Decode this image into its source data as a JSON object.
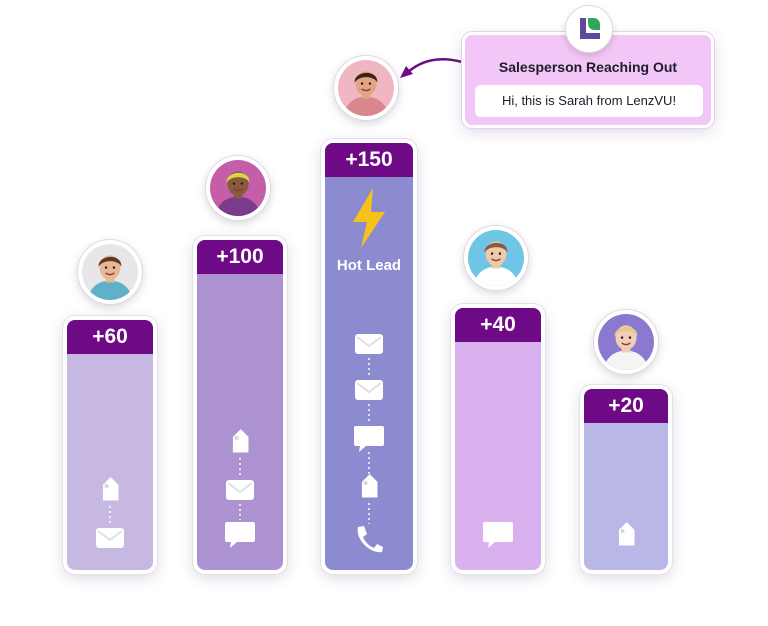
{
  "columns": [
    {
      "score": "+60",
      "color": "#c7b8e2",
      "icons": [
        "tag-icon",
        "mail-icon"
      ],
      "avatar": {
        "skin": "#e8b795",
        "hair": "#5a3a24",
        "shirt": "#5fb0c8",
        "bg": "#e9e6ea"
      }
    },
    {
      "score": "+100",
      "color": "#ad92d2",
      "icons": [
        "tag-icon",
        "mail-icon",
        "chat-icon"
      ],
      "avatar": {
        "skin": "#8a5a3c",
        "hair": "#d9d64a",
        "shirt": "#7b3b8c",
        "bg": "#c45ea8"
      }
    },
    {
      "score": "+150",
      "color": "#8d8bd0",
      "hot_label": "Hot Lead",
      "icons": [
        "mail-icon",
        "mail-icon",
        "chat-icon",
        "tag-icon",
        "phone-icon"
      ],
      "avatar": {
        "skin": "#e2a584",
        "hair": "#3b2419",
        "shirt": "#d9868f",
        "bg": "#f0b6c2"
      }
    },
    {
      "score": "+40",
      "color": "#d9b1ef",
      "icons": [
        "chat-icon"
      ],
      "avatar": {
        "skin": "#f0c9ad",
        "hair": "#8a5b3a",
        "shirt": "#ffffff",
        "bg": "#6ec5e5"
      }
    },
    {
      "score": "+20",
      "color": "#b8b7e6",
      "icons": [
        "tag-icon"
      ],
      "avatar": {
        "skin": "#f1cfb6",
        "hair": "#e7c98e",
        "shirt": "#f4f4f4",
        "bg": "#8b79cf"
      }
    }
  ],
  "callout": {
    "title": "Salesperson Reaching Out",
    "message": "Hi, this is Sarah from LenzVU!"
  },
  "colors": {
    "header": "#6e0a86",
    "bolt": "#f5c21b",
    "arrow": "#6e0a86",
    "logo_purple": "#5b4a9e",
    "logo_green": "#2fa85c"
  }
}
